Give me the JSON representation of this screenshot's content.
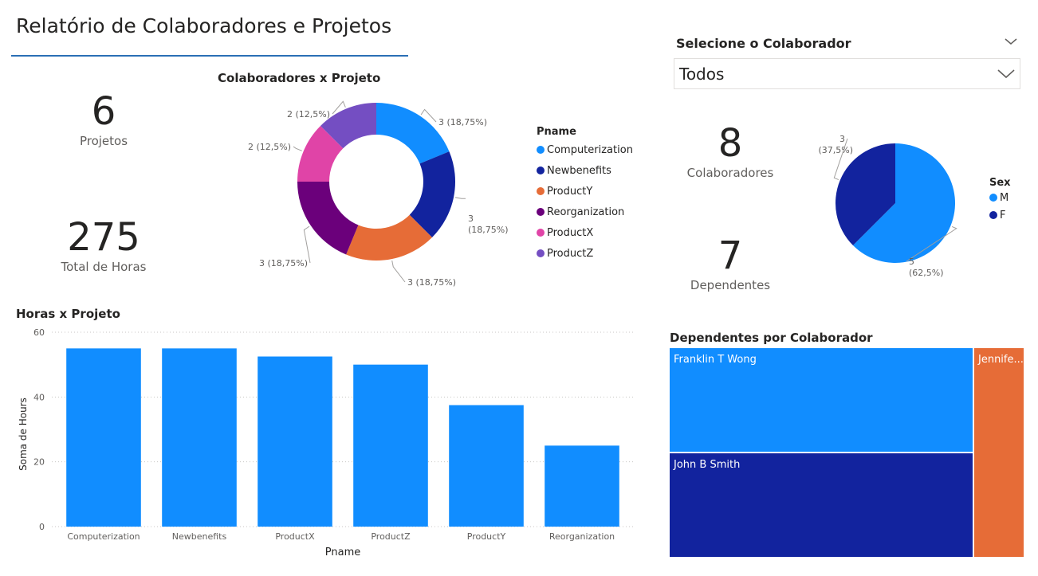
{
  "page": {
    "title": "Relatório de Colaboradores e Projetos"
  },
  "cards": {
    "projects": {
      "value": "6",
      "label": "Projetos"
    },
    "hours": {
      "value": "275",
      "label": "Total de Horas"
    },
    "employees": {
      "value": "8",
      "label": "Colaboradores"
    },
    "dependents": {
      "value": "7",
      "label": "Dependentes"
    }
  },
  "slicer": {
    "header": "Selecione o Colaborador",
    "value": "Todos",
    "icon": "chevron-down-icon"
  },
  "colors": {
    "Computerization": "#118dff",
    "Newbenefits": "#12239e",
    "ProductY": "#e66c37",
    "Reorganization": "#6b007b",
    "ProductX": "#e044a7",
    "ProductZ": "#744ec2"
  },
  "chart_data": [
    {
      "type": "pie",
      "variant": "donut",
      "title": "Colaboradores x Projeto",
      "legend_title": "Pname",
      "legend_position": "right",
      "slices": [
        {
          "name": "Computerization",
          "value": 3,
          "label": "3 (18,75%)"
        },
        {
          "name": "Newbenefits",
          "value": 3,
          "label": "3 (18,75%)"
        },
        {
          "name": "ProductY",
          "value": 3,
          "label": "3 (18,75%)"
        },
        {
          "name": "Reorganization",
          "value": 3,
          "label": "3 (18,75%)"
        },
        {
          "name": "ProductX",
          "value": 2,
          "label": "2 (12,5%)"
        },
        {
          "name": "ProductZ",
          "value": 2,
          "label": "2 (12,5%)"
        }
      ]
    },
    {
      "type": "pie",
      "title": "",
      "legend_title": "Sex",
      "legend_position": "right",
      "slices": [
        {
          "name": "M",
          "value": 5,
          "label_value": "5",
          "label_pct": "(62,5%)",
          "color": "#118dff"
        },
        {
          "name": "F",
          "value": 3,
          "label_value": "3",
          "label_pct": "(37,5%)",
          "color": "#12239e"
        }
      ]
    },
    {
      "type": "bar",
      "title": "Horas x Projeto",
      "xlabel": "Pname",
      "ylabel": "Soma de Hours",
      "ylim": [
        0,
        60
      ],
      "yticks": [
        "0",
        "20",
        "40",
        "60"
      ],
      "grid": true,
      "color": "#118dff",
      "categories": [
        "Computerization",
        "Newbenefits",
        "ProductX",
        "ProductZ",
        "ProductY",
        "Reorganization"
      ],
      "values": [
        55,
        55,
        52.5,
        50,
        37.5,
        25
      ]
    },
    {
      "type": "treemap",
      "title": "Dependentes por Colaborador",
      "items": [
        {
          "name": "Franklin T Wong",
          "value": 3,
          "color": "#118dff"
        },
        {
          "name": "John B Smith",
          "value": 3,
          "color": "#12239e"
        },
        {
          "name": "Jennife...",
          "value": 1,
          "color": "#e66c37"
        }
      ]
    }
  ]
}
